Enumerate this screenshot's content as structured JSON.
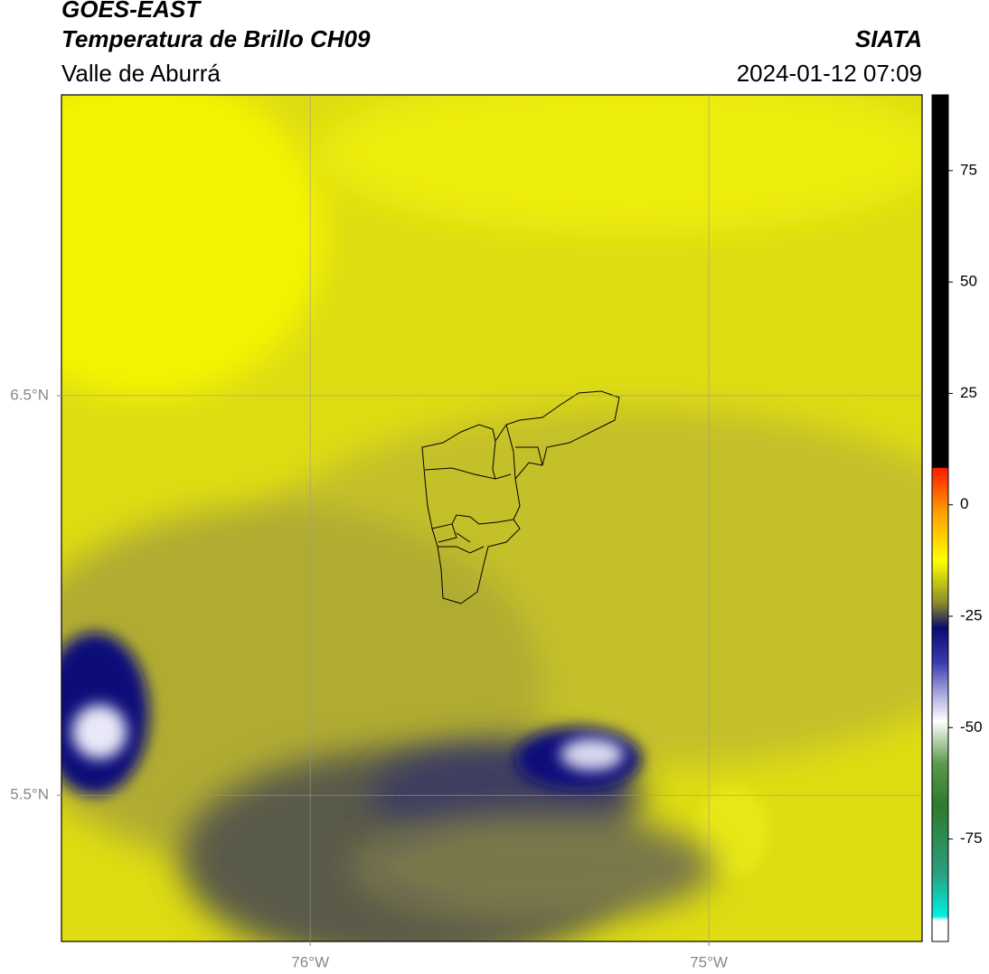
{
  "header": {
    "title": "GOES-EAST",
    "subtitle": "Temperatura de Brillo CH09",
    "region": "Valle de Aburrá",
    "source": "SIATA",
    "datetime": "2024-01-12 07:09"
  },
  "map": {
    "xlim": [
      -76.624,
      -74.465
    ],
    "ylim": [
      5.134,
      7.253
    ],
    "xticks": [
      {
        "value": -76,
        "label": "76°W"
      },
      {
        "value": -75,
        "label": "75°W"
      }
    ],
    "yticks": [
      {
        "value": 5.5,
        "label": "5.5°N"
      },
      {
        "value": 6.5,
        "label": "6.5°N"
      }
    ],
    "grid": true
  },
  "colorbar": {
    "lim": [
      -98,
      92
    ],
    "ticks": [
      -75,
      -50,
      -25,
      0,
      25,
      50,
      75
    ]
  }
}
